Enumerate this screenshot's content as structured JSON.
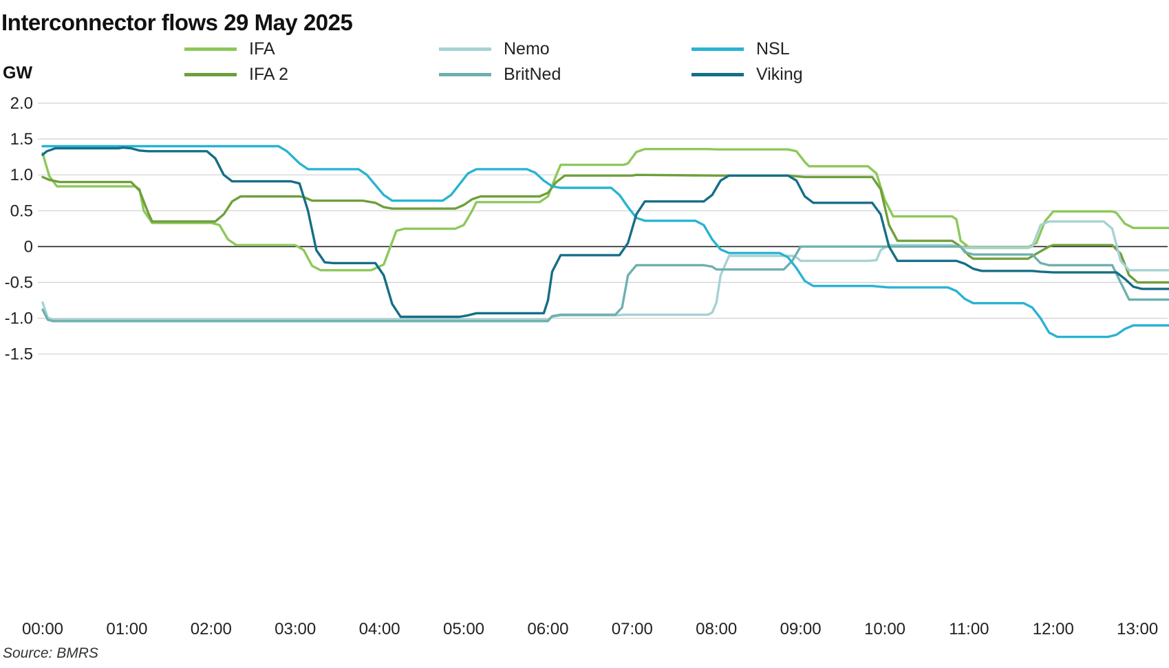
{
  "title": "Interconnector flows 29 May 2025",
  "unit_label": "GW",
  "source": "Source: BMRS",
  "chart_data": {
    "type": "line",
    "title": "Interconnector flows 29 May 2025",
    "ylabel": "GW",
    "xlabel": "",
    "ylim": [
      -1.5,
      2.0
    ],
    "xlim": [
      0,
      14.1
    ],
    "grid": true,
    "legend_position": "top",
    "y_ticks": [
      2.0,
      1.5,
      1.0,
      0.5,
      0,
      -0.5,
      -1.0,
      -1.5
    ],
    "y_tick_labels": [
      "2.0",
      "1.5",
      "1.0",
      "0.5",
      "0",
      "-0.5",
      "-1.0",
      "-1.5"
    ],
    "x_ticks": [
      0,
      1,
      2,
      3,
      4,
      5,
      6,
      7,
      8,
      9,
      10,
      11,
      12,
      13
    ],
    "x_tick_labels": [
      "00:00",
      "01:00",
      "02:00",
      "03:00",
      "04:00",
      "05:00",
      "06:00",
      "07:00",
      "08:00",
      "09:00",
      "10:00",
      "11:00",
      "12:00",
      "13:00"
    ],
    "x_unit": "hours",
    "series": [
      {
        "name": "IFA",
        "color": "#8dc85a",
        "points": [
          [
            0,
            1.3
          ],
          [
            0.08,
            0.98
          ],
          [
            0.17,
            0.84
          ],
          [
            1.0,
            0.84
          ],
          [
            1.1,
            0.84
          ],
          [
            1.15,
            0.8
          ],
          [
            1.2,
            0.5
          ],
          [
            1.3,
            0.33
          ],
          [
            2.0,
            0.33
          ],
          [
            2.1,
            0.3
          ],
          [
            2.2,
            0.1
          ],
          [
            2.3,
            0.02
          ],
          [
            3.0,
            0.02
          ],
          [
            3.1,
            -0.05
          ],
          [
            3.2,
            -0.27
          ],
          [
            3.3,
            -0.33
          ],
          [
            3.9,
            -0.33
          ],
          [
            4.05,
            -0.25
          ],
          [
            4.2,
            0.22
          ],
          [
            4.3,
            0.25
          ],
          [
            4.9,
            0.25
          ],
          [
            5.0,
            0.3
          ],
          [
            5.1,
            0.5
          ],
          [
            5.15,
            0.62
          ],
          [
            5.9,
            0.62
          ],
          [
            6.0,
            0.7
          ],
          [
            6.1,
            1.0
          ],
          [
            6.15,
            1.14
          ],
          [
            6.9,
            1.14
          ],
          [
            6.95,
            1.16
          ],
          [
            7.05,
            1.32
          ],
          [
            7.15,
            1.36
          ],
          [
            7.9,
            1.36
          ],
          [
            8.0,
            1.355
          ],
          [
            8.85,
            1.355
          ],
          [
            8.95,
            1.33
          ],
          [
            9.05,
            1.18
          ],
          [
            9.1,
            1.12
          ],
          [
            9.8,
            1.12
          ],
          [
            9.9,
            1.02
          ],
          [
            10.0,
            0.65
          ],
          [
            10.1,
            0.42
          ],
          [
            10.8,
            0.42
          ],
          [
            10.85,
            0.38
          ],
          [
            10.9,
            0.08
          ],
          [
            11.0,
            -0.01
          ],
          [
            11.7,
            -0.01
          ],
          [
            11.8,
            0.05
          ],
          [
            11.9,
            0.35
          ],
          [
            12.0,
            0.49
          ],
          [
            12.7,
            0.49
          ],
          [
            12.75,
            0.47
          ],
          [
            12.85,
            0.32
          ],
          [
            12.95,
            0.26
          ],
          [
            13.7,
            0.26
          ]
        ]
      },
      {
        "name": "IFA 2",
        "color": "#6f9f3c",
        "points": [
          [
            0,
            0.97
          ],
          [
            0.08,
            0.93
          ],
          [
            0.2,
            0.9
          ],
          [
            1.05,
            0.9
          ],
          [
            1.15,
            0.78
          ],
          [
            1.25,
            0.48
          ],
          [
            1.3,
            0.35
          ],
          [
            2.05,
            0.35
          ],
          [
            2.15,
            0.45
          ],
          [
            2.25,
            0.63
          ],
          [
            2.35,
            0.7
          ],
          [
            3.05,
            0.7
          ],
          [
            3.1,
            0.69
          ],
          [
            3.2,
            0.64
          ],
          [
            3.8,
            0.64
          ],
          [
            3.95,
            0.61
          ],
          [
            4.05,
            0.55
          ],
          [
            4.15,
            0.53
          ],
          [
            4.9,
            0.53
          ],
          [
            5.0,
            0.58
          ],
          [
            5.1,
            0.66
          ],
          [
            5.2,
            0.7
          ],
          [
            5.9,
            0.7
          ],
          [
            6.0,
            0.75
          ],
          [
            6.1,
            0.9
          ],
          [
            6.2,
            0.99
          ],
          [
            7.0,
            0.99
          ],
          [
            7.05,
            1.0
          ],
          [
            8.0,
            0.99
          ],
          [
            8.85,
            0.99
          ],
          [
            8.95,
            0.98
          ],
          [
            9.05,
            0.97
          ],
          [
            9.85,
            0.97
          ],
          [
            9.95,
            0.8
          ],
          [
            10.05,
            0.3
          ],
          [
            10.15,
            0.08
          ],
          [
            10.8,
            0.08
          ],
          [
            10.9,
            0.0
          ],
          [
            11.0,
            -0.13
          ],
          [
            11.05,
            -0.17
          ],
          [
            11.7,
            -0.17
          ],
          [
            11.8,
            -0.1
          ],
          [
            11.95,
            0.0
          ],
          [
            12.0,
            0.02
          ],
          [
            12.7,
            0.02
          ],
          [
            12.8,
            -0.1
          ],
          [
            12.9,
            -0.4
          ],
          [
            13.0,
            -0.5
          ],
          [
            13.7,
            -0.5
          ]
        ]
      },
      {
        "name": "Nemo",
        "color": "#a6d2d3",
        "points": [
          [
            0,
            -0.78
          ],
          [
            0.06,
            -0.99
          ],
          [
            0.12,
            -1.02
          ],
          [
            6.0,
            -1.02
          ],
          [
            6.05,
            -0.98
          ],
          [
            6.15,
            -0.96
          ],
          [
            6.8,
            -0.96
          ],
          [
            6.9,
            -0.95
          ],
          [
            7.9,
            -0.95
          ],
          [
            7.95,
            -0.92
          ],
          [
            8.0,
            -0.78
          ],
          [
            8.05,
            -0.4
          ],
          [
            8.15,
            -0.13
          ],
          [
            8.9,
            -0.13
          ],
          [
            8.95,
            -0.15
          ],
          [
            9.0,
            -0.2
          ],
          [
            9.8,
            -0.2
          ],
          [
            9.9,
            -0.19
          ],
          [
            9.95,
            -0.05
          ],
          [
            10.05,
            0.02
          ],
          [
            10.8,
            0.02
          ],
          [
            10.9,
            -0.01
          ],
          [
            11.0,
            -0.02
          ],
          [
            11.7,
            -0.02
          ],
          [
            11.75,
            0.0
          ],
          [
            11.85,
            0.3
          ],
          [
            11.95,
            0.35
          ],
          [
            12.6,
            0.35
          ],
          [
            12.7,
            0.25
          ],
          [
            12.8,
            -0.2
          ],
          [
            12.9,
            -0.33
          ],
          [
            13.7,
            -0.33
          ]
        ]
      },
      {
        "name": "BritNed",
        "color": "#6fb0ae",
        "points": [
          [
            0,
            -0.88
          ],
          [
            0.06,
            -1.02
          ],
          [
            0.12,
            -1.04
          ],
          [
            1.0,
            -1.04
          ],
          [
            1.5,
            -1.04
          ],
          [
            2.0,
            -1.04
          ],
          [
            3.0,
            -1.04
          ],
          [
            4.0,
            -1.04
          ],
          [
            5.0,
            -1.04
          ],
          [
            6.0,
            -1.04
          ],
          [
            6.05,
            -0.97
          ],
          [
            6.15,
            -0.95
          ],
          [
            6.8,
            -0.95
          ],
          [
            6.88,
            -0.85
          ],
          [
            6.95,
            -0.4
          ],
          [
            7.05,
            -0.26
          ],
          [
            7.85,
            -0.26
          ],
          [
            7.95,
            -0.28
          ],
          [
            8.0,
            -0.32
          ],
          [
            8.8,
            -0.32
          ],
          [
            8.9,
            -0.2
          ],
          [
            9.0,
            0.0
          ],
          [
            10.0,
            0.0
          ],
          [
            10.9,
            0.0
          ],
          [
            10.95,
            -0.08
          ],
          [
            11.05,
            -0.11
          ],
          [
            11.75,
            -0.11
          ],
          [
            11.85,
            -0.23
          ],
          [
            11.95,
            -0.26
          ],
          [
            12.7,
            -0.26
          ],
          [
            12.8,
            -0.5
          ],
          [
            12.9,
            -0.74
          ],
          [
            13.7,
            -0.74
          ]
        ]
      },
      {
        "name": "NSL",
        "color": "#29b3d3",
        "points": [
          [
            0,
            1.4
          ],
          [
            2.8,
            1.4
          ],
          [
            2.9,
            1.33
          ],
          [
            3.05,
            1.16
          ],
          [
            3.15,
            1.08
          ],
          [
            3.75,
            1.08
          ],
          [
            3.85,
            1.0
          ],
          [
            4.05,
            0.72
          ],
          [
            4.15,
            0.64
          ],
          [
            4.75,
            0.64
          ],
          [
            4.85,
            0.72
          ],
          [
            5.05,
            1.02
          ],
          [
            5.15,
            1.08
          ],
          [
            5.75,
            1.08
          ],
          [
            5.85,
            1.03
          ],
          [
            5.95,
            0.92
          ],
          [
            6.05,
            0.84
          ],
          [
            6.15,
            0.82
          ],
          [
            6.75,
            0.82
          ],
          [
            6.85,
            0.72
          ],
          [
            6.95,
            0.55
          ],
          [
            7.05,
            0.4
          ],
          [
            7.15,
            0.36
          ],
          [
            7.75,
            0.36
          ],
          [
            7.85,
            0.3
          ],
          [
            7.95,
            0.1
          ],
          [
            8.05,
            -0.04
          ],
          [
            8.15,
            -0.09
          ],
          [
            8.75,
            -0.09
          ],
          [
            8.85,
            -0.15
          ],
          [
            8.95,
            -0.3
          ],
          [
            9.05,
            -0.48
          ],
          [
            9.15,
            -0.55
          ],
          [
            9.85,
            -0.55
          ],
          [
            9.95,
            -0.56
          ],
          [
            10.05,
            -0.57
          ],
          [
            10.75,
            -0.57
          ],
          [
            10.85,
            -0.62
          ],
          [
            10.95,
            -0.73
          ],
          [
            11.05,
            -0.79
          ],
          [
            11.65,
            -0.79
          ],
          [
            11.75,
            -0.85
          ],
          [
            11.85,
            -1.0
          ],
          [
            11.95,
            -1.2
          ],
          [
            12.05,
            -1.26
          ],
          [
            12.65,
            -1.26
          ],
          [
            12.75,
            -1.23
          ],
          [
            12.85,
            -1.15
          ],
          [
            12.95,
            -1.1
          ],
          [
            13.7,
            -1.1
          ]
        ]
      },
      {
        "name": "Viking",
        "color": "#156e86",
        "points": [
          [
            0,
            1.28
          ],
          [
            0.05,
            1.33
          ],
          [
            0.15,
            1.37
          ],
          [
            0.9,
            1.37
          ],
          [
            0.95,
            1.38
          ],
          [
            1.05,
            1.37
          ],
          [
            1.15,
            1.34
          ],
          [
            1.25,
            1.33
          ],
          [
            1.95,
            1.33
          ],
          [
            2.05,
            1.23
          ],
          [
            2.15,
            1.0
          ],
          [
            2.25,
            0.91
          ],
          [
            2.95,
            0.91
          ],
          [
            3.05,
            0.88
          ],
          [
            3.15,
            0.5
          ],
          [
            3.25,
            -0.05
          ],
          [
            3.35,
            -0.22
          ],
          [
            3.45,
            -0.23
          ],
          [
            3.95,
            -0.23
          ],
          [
            4.05,
            -0.4
          ],
          [
            4.15,
            -0.8
          ],
          [
            4.25,
            -0.98
          ],
          [
            4.95,
            -0.98
          ],
          [
            5.05,
            -0.96
          ],
          [
            5.15,
            -0.93
          ],
          [
            5.95,
            -0.93
          ],
          [
            6.0,
            -0.75
          ],
          [
            6.05,
            -0.35
          ],
          [
            6.15,
            -0.12
          ],
          [
            6.85,
            -0.12
          ],
          [
            6.95,
            0.05
          ],
          [
            7.05,
            0.45
          ],
          [
            7.15,
            0.63
          ],
          [
            7.85,
            0.63
          ],
          [
            7.95,
            0.72
          ],
          [
            8.05,
            0.92
          ],
          [
            8.15,
            0.99
          ],
          [
            8.85,
            0.99
          ],
          [
            8.95,
            0.92
          ],
          [
            9.05,
            0.7
          ],
          [
            9.15,
            0.61
          ],
          [
            9.85,
            0.61
          ],
          [
            9.95,
            0.45
          ],
          [
            10.05,
            0.0
          ],
          [
            10.15,
            -0.2
          ],
          [
            10.85,
            -0.2
          ],
          [
            10.95,
            -0.24
          ],
          [
            11.05,
            -0.31
          ],
          [
            11.15,
            -0.34
          ],
          [
            11.75,
            -0.34
          ],
          [
            11.85,
            -0.35
          ],
          [
            12.0,
            -0.36
          ],
          [
            12.75,
            -0.36
          ],
          [
            12.85,
            -0.45
          ],
          [
            12.95,
            -0.56
          ],
          [
            13.05,
            -0.59
          ],
          [
            13.7,
            -0.59
          ]
        ]
      }
    ]
  }
}
